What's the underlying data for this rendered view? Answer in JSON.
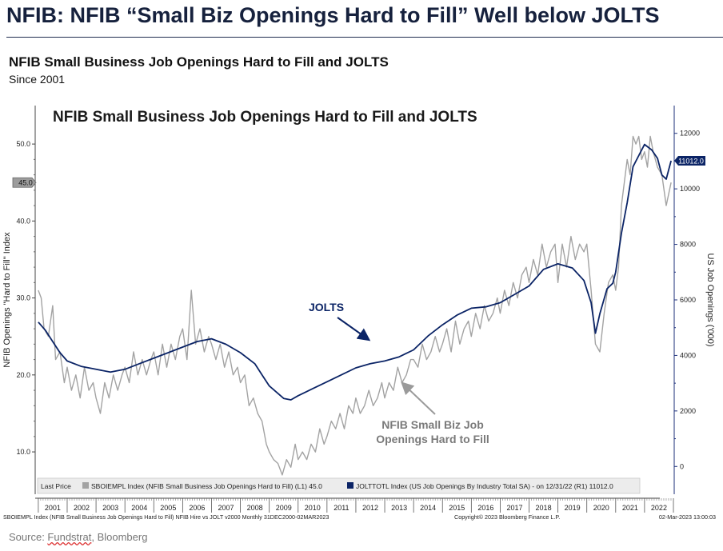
{
  "header": {
    "headline": "NFIB: NFIB “Small Biz Openings Hard to Fill” Well below JOLTS",
    "subtitle": "NFIB Small Business Job Openings Hard to Fill and JOLTS",
    "since": "Since 2001"
  },
  "source": {
    "prefix": "Source: ",
    "name": "Fundstrat",
    "suffix": ", Bloomberg"
  },
  "colors": {
    "jolts": "#0b2466",
    "nfib": "#a3a3a3",
    "arrow_jolts": "#0b2466",
    "arrow_nfib": "#9a9a9a"
  },
  "chart_data": {
    "type": "line",
    "title": "NFIB Small Business Job Openings Hard to Fill and JOLTS",
    "ylabel_left": "NFIB Openings \"Hard to Fill\" Index",
    "ylabel_right": "US Job Openings ('000)",
    "ylim_left": [
      4.5,
      55
    ],
    "ylim_right": [
      -1000,
      13000
    ],
    "yticks_left": [
      "10.0",
      "20.0",
      "30.0",
      "40.0",
      "50.0"
    ],
    "yticks_right": [
      "0",
      "2000",
      "4000",
      "6000",
      "8000",
      "10000",
      "12000"
    ],
    "x_categories": [
      "2001",
      "2002",
      "2003",
      "2004",
      "2005",
      "2006",
      "2007",
      "2008",
      "2009",
      "2010",
      "2011",
      "2012",
      "2013",
      "2014",
      "2015",
      "2016",
      "2017",
      "2018",
      "2019",
      "2020",
      "2021",
      "2022"
    ],
    "last_price_left": "45.0",
    "last_price_right": "11012.0",
    "annotations": {
      "jolts": "JOLTS",
      "nfib_line1": "NFIB Small Biz Job",
      "nfib_line2": "Openings Hard to Fill"
    },
    "legend": {
      "last_price": "Last Price",
      "nfib": "SBOIEMPL Index (NFIB Small Business Job Openings Hard to Fill)  (L1) 45.0",
      "jolts": "JOLTTOTL Index (US Job Openings By Industry Total SA)  -  on 12/31/22  (R1) 11012.0"
    },
    "footer": {
      "left": "SBOIEMPL Index (NFIB Small Business Job Openings Hard to Fill) NFIB Hire vs JOLT v2000  Monthly 31DEC2000-02MAR2023",
      "center": "Copyright© 2023 Bloomberg Finance L.P.",
      "right": "02-Mar-2023 13:00:03"
    },
    "series": [
      {
        "name": "JOLTTOTL Index (US Job Openings By Industry Total SA)",
        "axis": "right",
        "points": [
          [
            2001.0,
            5200
          ],
          [
            2001.25,
            4900
          ],
          [
            2001.5,
            4500
          ],
          [
            2001.75,
            4100
          ],
          [
            2002.0,
            3800
          ],
          [
            2002.5,
            3600
          ],
          [
            2003.0,
            3500
          ],
          [
            2003.5,
            3400
          ],
          [
            2004.0,
            3500
          ],
          [
            2004.5,
            3700
          ],
          [
            2005.0,
            3900
          ],
          [
            2005.5,
            4100
          ],
          [
            2006.0,
            4300
          ],
          [
            2006.5,
            4500
          ],
          [
            2007.0,
            4600
          ],
          [
            2007.5,
            4400
          ],
          [
            2008.0,
            4100
          ],
          [
            2008.5,
            3700
          ],
          [
            2008.75,
            3300
          ],
          [
            2009.0,
            2900
          ],
          [
            2009.5,
            2450
          ],
          [
            2009.75,
            2400
          ],
          [
            2010.0,
            2550
          ],
          [
            2010.5,
            2800
          ],
          [
            2011.0,
            3050
          ],
          [
            2011.5,
            3300
          ],
          [
            2012.0,
            3550
          ],
          [
            2012.5,
            3700
          ],
          [
            2013.0,
            3800
          ],
          [
            2013.5,
            3950
          ],
          [
            2014.0,
            4200
          ],
          [
            2014.5,
            4700
          ],
          [
            2015.0,
            5100
          ],
          [
            2015.5,
            5450
          ],
          [
            2016.0,
            5700
          ],
          [
            2016.5,
            5750
          ],
          [
            2017.0,
            5900
          ],
          [
            2017.5,
            6200
          ],
          [
            2018.0,
            6500
          ],
          [
            2018.5,
            7100
          ],
          [
            2019.0,
            7300
          ],
          [
            2019.5,
            7150
          ],
          [
            2019.9,
            6700
          ],
          [
            2020.15,
            5900
          ],
          [
            2020.3,
            4800
          ],
          [
            2020.45,
            5500
          ],
          [
            2020.7,
            6400
          ],
          [
            2020.9,
            6600
          ],
          [
            2021.0,
            7000
          ],
          [
            2021.2,
            8400
          ],
          [
            2021.4,
            9500
          ],
          [
            2021.6,
            10800
          ],
          [
            2021.8,
            11200
          ],
          [
            2022.0,
            11600
          ],
          [
            2022.25,
            11400
          ],
          [
            2022.45,
            11100
          ],
          [
            2022.6,
            10500
          ],
          [
            2022.75,
            10350
          ],
          [
            2022.92,
            11012
          ]
        ]
      },
      {
        "name": "SBOIEMPL Index (NFIB Small Business Job Openings Hard to Fill)",
        "axis": "left",
        "points": [
          [
            2001.0,
            31
          ],
          [
            2001.1,
            30
          ],
          [
            2001.2,
            26
          ],
          [
            2001.35,
            25
          ],
          [
            2001.5,
            29
          ],
          [
            2001.6,
            22
          ],
          [
            2001.75,
            23
          ],
          [
            2001.9,
            19
          ],
          [
            2002.0,
            21
          ],
          [
            2002.15,
            18
          ],
          [
            2002.3,
            20
          ],
          [
            2002.45,
            17
          ],
          [
            2002.6,
            21
          ],
          [
            2002.75,
            18
          ],
          [
            2002.9,
            19
          ],
          [
            2003.0,
            17
          ],
          [
            2003.15,
            15
          ],
          [
            2003.3,
            19
          ],
          [
            2003.45,
            17
          ],
          [
            2003.6,
            20
          ],
          [
            2003.75,
            18
          ],
          [
            2003.9,
            20
          ],
          [
            2004.0,
            21
          ],
          [
            2004.15,
            19
          ],
          [
            2004.3,
            23
          ],
          [
            2004.45,
            20
          ],
          [
            2004.6,
            22
          ],
          [
            2004.75,
            20
          ],
          [
            2004.9,
            22
          ],
          [
            2005.0,
            23
          ],
          [
            2005.15,
            20
          ],
          [
            2005.3,
            24
          ],
          [
            2005.45,
            21
          ],
          [
            2005.6,
            24
          ],
          [
            2005.75,
            22
          ],
          [
            2005.9,
            25
          ],
          [
            2006.0,
            26
          ],
          [
            2006.15,
            22
          ],
          [
            2006.3,
            31
          ],
          [
            2006.45,
            24
          ],
          [
            2006.6,
            26
          ],
          [
            2006.75,
            23
          ],
          [
            2006.9,
            25
          ],
          [
            2007.0,
            24
          ],
          [
            2007.15,
            22
          ],
          [
            2007.3,
            24
          ],
          [
            2007.45,
            21
          ],
          [
            2007.6,
            23
          ],
          [
            2007.75,
            20
          ],
          [
            2007.9,
            21
          ],
          [
            2008.0,
            19
          ],
          [
            2008.15,
            20
          ],
          [
            2008.3,
            16
          ],
          [
            2008.45,
            17
          ],
          [
            2008.6,
            15
          ],
          [
            2008.75,
            14
          ],
          [
            2008.9,
            11
          ],
          [
            2009.0,
            10
          ],
          [
            2009.15,
            9
          ],
          [
            2009.3,
            8.5
          ],
          [
            2009.45,
            7
          ],
          [
            2009.6,
            9
          ],
          [
            2009.75,
            8
          ],
          [
            2009.9,
            11
          ],
          [
            2010.0,
            9
          ],
          [
            2010.15,
            10
          ],
          [
            2010.3,
            9
          ],
          [
            2010.45,
            11
          ],
          [
            2010.6,
            10
          ],
          [
            2010.75,
            13
          ],
          [
            2010.9,
            11
          ],
          [
            2011.0,
            12
          ],
          [
            2011.15,
            14
          ],
          [
            2011.3,
            13
          ],
          [
            2011.45,
            15
          ],
          [
            2011.6,
            13
          ],
          [
            2011.75,
            16
          ],
          [
            2011.9,
            15
          ],
          [
            2012.0,
            17
          ],
          [
            2012.15,
            15
          ],
          [
            2012.3,
            16
          ],
          [
            2012.45,
            18
          ],
          [
            2012.6,
            16
          ],
          [
            2012.75,
            17
          ],
          [
            2012.9,
            19
          ],
          [
            2013.0,
            17
          ],
          [
            2013.15,
            19
          ],
          [
            2013.3,
            18
          ],
          [
            2013.45,
            21
          ],
          [
            2013.6,
            19
          ],
          [
            2013.75,
            20
          ],
          [
            2013.9,
            22
          ],
          [
            2014.0,
            22
          ],
          [
            2014.15,
            21
          ],
          [
            2014.3,
            24
          ],
          [
            2014.45,
            22
          ],
          [
            2014.6,
            23
          ],
          [
            2014.75,
            25
          ],
          [
            2014.9,
            23
          ],
          [
            2015.0,
            24
          ],
          [
            2015.15,
            26
          ],
          [
            2015.3,
            23
          ],
          [
            2015.45,
            27
          ],
          [
            2015.6,
            24
          ],
          [
            2015.75,
            26
          ],
          [
            2015.9,
            27
          ],
          [
            2016.0,
            25
          ],
          [
            2016.15,
            28
          ],
          [
            2016.3,
            26
          ],
          [
            2016.45,
            29
          ],
          [
            2016.6,
            27
          ],
          [
            2016.75,
            28
          ],
          [
            2016.9,
            30
          ],
          [
            2017.0,
            28
          ],
          [
            2017.15,
            31
          ],
          [
            2017.3,
            29
          ],
          [
            2017.45,
            32
          ],
          [
            2017.6,
            30
          ],
          [
            2017.75,
            33
          ],
          [
            2017.9,
            34
          ],
          [
            2018.0,
            32
          ],
          [
            2018.15,
            35
          ],
          [
            2018.3,
            33
          ],
          [
            2018.45,
            37
          ],
          [
            2018.6,
            34
          ],
          [
            2018.75,
            36
          ],
          [
            2018.9,
            37
          ],
          [
            2019.0,
            32
          ],
          [
            2019.15,
            37
          ],
          [
            2019.3,
            34
          ],
          [
            2019.45,
            38
          ],
          [
            2019.6,
            35
          ],
          [
            2019.75,
            37
          ],
          [
            2019.9,
            36
          ],
          [
            2020.0,
            37
          ],
          [
            2020.15,
            31
          ],
          [
            2020.3,
            24
          ],
          [
            2020.45,
            23
          ],
          [
            2020.6,
            28
          ],
          [
            2020.75,
            32
          ],
          [
            2020.9,
            33
          ],
          [
            2021.0,
            31
          ],
          [
            2021.1,
            34
          ],
          [
            2021.2,
            42
          ],
          [
            2021.3,
            45
          ],
          [
            2021.4,
            48
          ],
          [
            2021.5,
            46
          ],
          [
            2021.6,
            51
          ],
          [
            2021.7,
            50
          ],
          [
            2021.8,
            51
          ],
          [
            2021.9,
            48
          ],
          [
            2022.0,
            49
          ],
          [
            2022.1,
            47
          ],
          [
            2022.2,
            51
          ],
          [
            2022.3,
            49
          ],
          [
            2022.45,
            47
          ],
          [
            2022.6,
            46
          ],
          [
            2022.75,
            42
          ],
          [
            2022.92,
            45
          ]
        ]
      }
    ]
  }
}
